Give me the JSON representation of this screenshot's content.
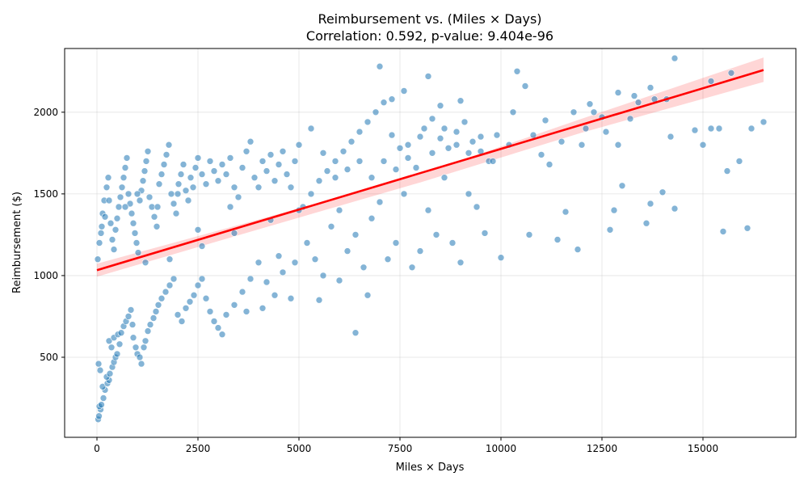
{
  "chart_data": {
    "type": "scatter",
    "title": "Reimbursement vs. (Miles × Days)",
    "subtitle": "Correlation: 0.592, p-value: 9.404e-96",
    "xlabel": "Miles × Days",
    "ylabel": "Reimbursement ($)",
    "xlim": [
      -800,
      17300
    ],
    "ylim": [
      10,
      2390
    ],
    "xticks": [
      0,
      2500,
      5000,
      7500,
      10000,
      12500,
      15000
    ],
    "yticks": [
      500,
      1000,
      1500,
      2000
    ],
    "grid": true,
    "colors": {
      "points": "#1f77b4",
      "regression": "#ff0000"
    },
    "regression": {
      "x": [
        0,
        16500
      ],
      "y": [
        1033,
        2258
      ]
    },
    "confidence_band": {
      "x": [
        0,
        4000,
        8000,
        12000,
        16500
      ],
      "upper": [
        1073,
        1343,
        1620,
        1960,
        2335
      ],
      "lower": [
        993,
        1283,
        1570,
        1875,
        2185
      ]
    },
    "points": [
      [
        30,
        120
      ],
      [
        50,
        140
      ],
      [
        90,
        180
      ],
      [
        60,
        200
      ],
      [
        110,
        210
      ],
      [
        160,
        250
      ],
      [
        200,
        300
      ],
      [
        140,
        320
      ],
      [
        260,
        340
      ],
      [
        300,
        360
      ],
      [
        240,
        380
      ],
      [
        320,
        400
      ],
      [
        80,
        420
      ],
      [
        40,
        460
      ],
      [
        380,
        440
      ],
      [
        420,
        470
      ],
      [
        460,
        500
      ],
      [
        500,
        520
      ],
      [
        360,
        560
      ],
      [
        300,
        600
      ],
      [
        420,
        620
      ],
      [
        520,
        640
      ],
      [
        560,
        580
      ],
      [
        600,
        650
      ],
      [
        660,
        690
      ],
      [
        720,
        720
      ],
      [
        780,
        750
      ],
      [
        840,
        790
      ],
      [
        880,
        700
      ],
      [
        900,
        620
      ],
      [
        960,
        560
      ],
      [
        1000,
        520
      ],
      [
        1060,
        500
      ],
      [
        1100,
        460
      ],
      [
        1160,
        560
      ],
      [
        1200,
        600
      ],
      [
        1260,
        660
      ],
      [
        1320,
        700
      ],
      [
        1400,
        740
      ],
      [
        1460,
        780
      ],
      [
        1520,
        820
      ],
      [
        1600,
        860
      ],
      [
        1700,
        900
      ],
      [
        1800,
        940
      ],
      [
        1900,
        980
      ],
      [
        2000,
        760
      ],
      [
        2100,
        720
      ],
      [
        2200,
        800
      ],
      [
        2300,
        840
      ],
      [
        2400,
        880
      ],
      [
        2500,
        940
      ],
      [
        2600,
        980
      ],
      [
        2700,
        860
      ],
      [
        2800,
        780
      ],
      [
        2900,
        720
      ],
      [
        3000,
        680
      ],
      [
        3200,
        760
      ],
      [
        3400,
        820
      ],
      [
        3600,
        900
      ],
      [
        3800,
        980
      ],
      [
        4000,
        1080
      ],
      [
        4200,
        960
      ],
      [
        4400,
        880
      ],
      [
        4600,
        1020
      ],
      [
        4800,
        860
      ],
      [
        3100,
        640
      ],
      [
        3700,
        780
      ],
      [
        4100,
        800
      ],
      [
        4500,
        1120
      ],
      [
        4900,
        1080
      ],
      [
        20,
        1100
      ],
      [
        60,
        1200
      ],
      [
        100,
        1260
      ],
      [
        140,
        1380
      ],
      [
        180,
        1460
      ],
      [
        240,
        1540
      ],
      [
        280,
        1600
      ],
      [
        340,
        1320
      ],
      [
        380,
        1220
      ],
      [
        420,
        1160
      ],
      [
        460,
        1280
      ],
      [
        500,
        1350
      ],
      [
        540,
        1420
      ],
      [
        580,
        1480
      ],
      [
        620,
        1540
      ],
      [
        660,
        1600
      ],
      [
        700,
        1660
      ],
      [
        740,
        1720
      ],
      [
        780,
        1500
      ],
      [
        820,
        1440
      ],
      [
        860,
        1380
      ],
      [
        900,
        1320
      ],
      [
        940,
        1260
      ],
      [
        980,
        1200
      ],
      [
        1020,
        1140
      ],
      [
        1060,
        1460
      ],
      [
        1100,
        1520
      ],
      [
        1140,
        1580
      ],
      [
        1180,
        1640
      ],
      [
        1220,
        1700
      ],
      [
        1260,
        1760
      ],
      [
        1300,
        1480
      ],
      [
        1360,
        1420
      ],
      [
        1420,
        1360
      ],
      [
        1480,
        1300
      ],
      [
        1540,
        1560
      ],
      [
        1600,
        1620
      ],
      [
        1660,
        1680
      ],
      [
        1720,
        1740
      ],
      [
        1780,
        1800
      ],
      [
        1840,
        1500
      ],
      [
        1900,
        1440
      ],
      [
        1960,
        1380
      ],
      [
        2020,
        1560
      ],
      [
        2080,
        1620
      ],
      [
        2140,
        1680
      ],
      [
        2200,
        1520
      ],
      [
        2260,
        1460
      ],
      [
        2320,
        1600
      ],
      [
        2380,
        1540
      ],
      [
        2440,
        1660
      ],
      [
        2500,
        1720
      ],
      [
        2600,
        1620
      ],
      [
        2700,
        1560
      ],
      [
        2800,
        1700
      ],
      [
        2900,
        1640
      ],
      [
        3000,
        1580
      ],
      [
        3100,
        1680
      ],
      [
        3200,
        1620
      ],
      [
        3300,
        1720
      ],
      [
        3400,
        1540
      ],
      [
        3500,
        1480
      ],
      [
        3600,
        1660
      ],
      [
        3700,
        1760
      ],
      [
        3800,
        1820
      ],
      [
        3900,
        1600
      ],
      [
        4000,
        1540
      ],
      [
        4100,
        1700
      ],
      [
        4200,
        1640
      ],
      [
        4300,
        1740
      ],
      [
        4400,
        1580
      ],
      [
        4500,
        1680
      ],
      [
        4600,
        1760
      ],
      [
        4700,
        1620
      ],
      [
        4800,
        1540
      ],
      [
        4900,
        1700
      ],
      [
        5000,
        1800
      ],
      [
        300,
        1460
      ],
      [
        200,
        1360
      ],
      [
        120,
        1300
      ],
      [
        700,
        1420
      ],
      [
        1000,
        1500
      ],
      [
        1500,
        1420
      ],
      [
        2000,
        1500
      ],
      [
        2500,
        1280
      ],
      [
        3300,
        1420
      ],
      [
        1200,
        1080
      ],
      [
        1800,
        1100
      ],
      [
        2600,
        1180
      ],
      [
        3400,
        1260
      ],
      [
        4300,
        1340
      ],
      [
        5000,
        1400
      ],
      [
        5100,
        1420
      ],
      [
        5300,
        1500
      ],
      [
        5500,
        1580
      ],
      [
        5700,
        1640
      ],
      [
        5900,
        1700
      ],
      [
        6100,
        1760
      ],
      [
        6300,
        1820
      ],
      [
        6500,
        1880
      ],
      [
        6700,
        1940
      ],
      [
        6900,
        2000
      ],
      [
        7100,
        2060
      ],
      [
        7300,
        1860
      ],
      [
        7500,
        1780
      ],
      [
        7700,
        1720
      ],
      [
        7900,
        1660
      ],
      [
        8100,
        1900
      ],
      [
        8300,
        1960
      ],
      [
        8500,
        1840
      ],
      [
        8700,
        1780
      ],
      [
        8900,
        1880
      ],
      [
        9100,
        1940
      ],
      [
        9300,
        1820
      ],
      [
        9500,
        1760
      ],
      [
        9700,
        1700
      ],
      [
        9900,
        1860
      ],
      [
        5200,
        1200
      ],
      [
        5400,
        1100
      ],
      [
        5600,
        1000
      ],
      [
        5800,
        1300
      ],
      [
        6000,
        1400
      ],
      [
        6200,
        1150
      ],
      [
        6400,
        1250
      ],
      [
        6600,
        1050
      ],
      [
        6800,
        1350
      ],
      [
        7000,
        1450
      ],
      [
        7200,
        1100
      ],
      [
        7400,
        1200
      ],
      [
        7600,
        1500
      ],
      [
        7800,
        1050
      ],
      [
        8000,
        1150
      ],
      [
        8200,
        1400
      ],
      [
        8400,
        1250
      ],
      [
        8600,
        1600
      ],
      [
        8800,
        1200
      ],
      [
        9000,
        1080
      ],
      [
        9200,
        1500
      ],
      [
        9400,
        1420
      ],
      [
        9600,
        1260
      ],
      [
        9800,
        1700
      ],
      [
        5300,
        1900
      ],
      [
        5600,
        1750
      ],
      [
        5900,
        1600
      ],
      [
        6200,
        1650
      ],
      [
        6500,
        1700
      ],
      [
        6800,
        1600
      ],
      [
        7100,
        1700
      ],
      [
        7400,
        1650
      ],
      [
        7700,
        1800
      ],
      [
        8000,
        1850
      ],
      [
        8300,
        1750
      ],
      [
        8600,
        1900
      ],
      [
        8900,
        1800
      ],
      [
        9200,
        1750
      ],
      [
        9500,
        1850
      ],
      [
        5500,
        850
      ],
      [
        6000,
        970
      ],
      [
        6400,
        650
      ],
      [
        6700,
        880
      ],
      [
        7000,
        2280
      ],
      [
        7300,
        2080
      ],
      [
        7600,
        2130
      ],
      [
        8200,
        2220
      ],
      [
        8500,
        2040
      ],
      [
        9000,
        2070
      ],
      [
        10000,
        1110
      ],
      [
        10200,
        1800
      ],
      [
        10400,
        2250
      ],
      [
        10600,
        2160
      ],
      [
        10800,
        1860
      ],
      [
        11000,
        1740
      ],
      [
        11200,
        1680
      ],
      [
        11400,
        1220
      ],
      [
        11600,
        1390
      ],
      [
        11900,
        1160
      ],
      [
        12000,
        1800
      ],
      [
        12100,
        1900
      ],
      [
        12300,
        2000
      ],
      [
        12600,
        1880
      ],
      [
        12700,
        1280
      ],
      [
        12800,
        1400
      ],
      [
        12900,
        2120
      ],
      [
        13000,
        1550
      ],
      [
        13200,
        1960
      ],
      [
        13400,
        2060
      ],
      [
        13600,
        1320
      ],
      [
        13700,
        2150
      ],
      [
        13800,
        2080
      ],
      [
        14000,
        1510
      ],
      [
        14200,
        1850
      ],
      [
        14300,
        1410
      ],
      [
        14300,
        2330
      ],
      [
        14800,
        1890
      ],
      [
        15000,
        1800
      ],
      [
        15200,
        1900
      ],
      [
        15200,
        2190
      ],
      [
        15400,
        1900
      ],
      [
        15500,
        1270
      ],
      [
        15600,
        1640
      ],
      [
        15700,
        2240
      ],
      [
        15900,
        1700
      ],
      [
        16100,
        1290
      ],
      [
        16200,
        1900
      ],
      [
        16500,
        1940
      ],
      [
        10300,
        2000
      ],
      [
        10700,
        1250
      ],
      [
        11100,
        1950
      ],
      [
        11500,
        1820
      ],
      [
        11800,
        2000
      ],
      [
        12200,
        2050
      ],
      [
        12500,
        1970
      ],
      [
        12900,
        1800
      ],
      [
        13300,
        2100
      ],
      [
        13700,
        1440
      ],
      [
        14100,
        2080
      ]
    ]
  }
}
